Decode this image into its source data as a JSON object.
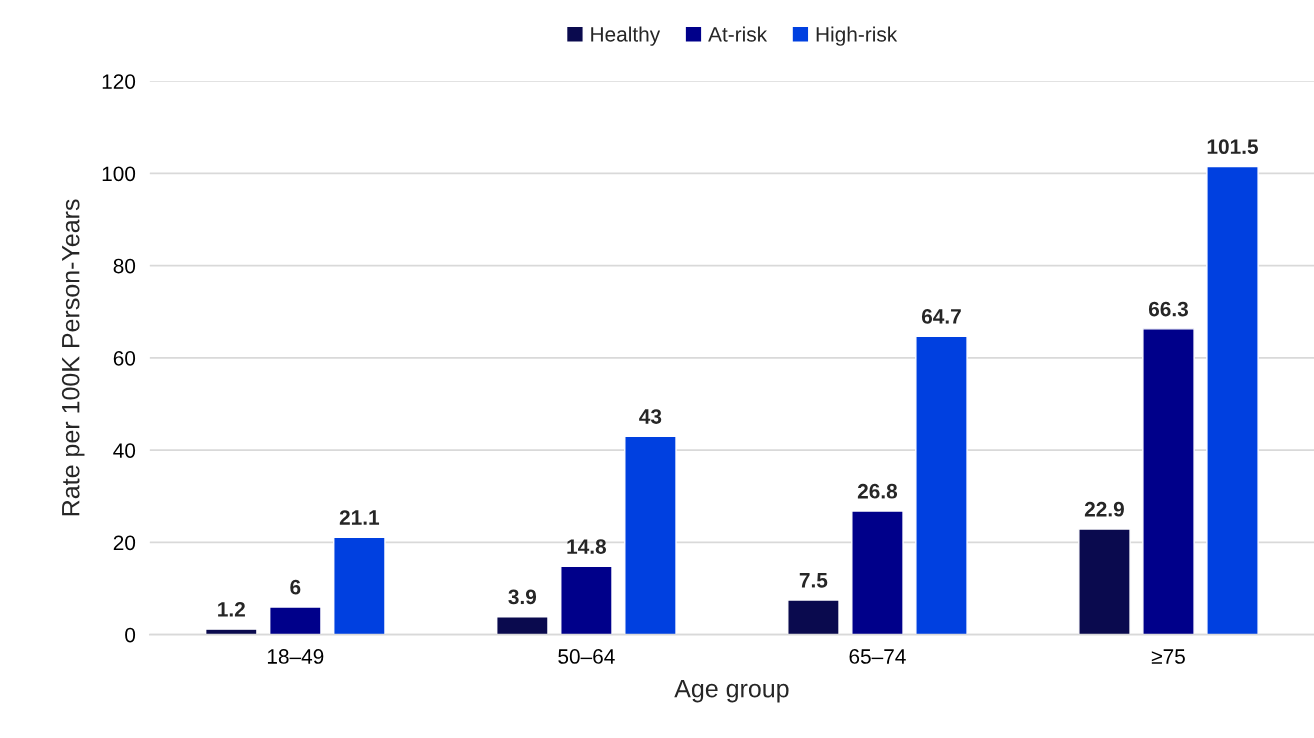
{
  "chart_data": {
    "type": "bar",
    "xlabel": "Age group",
    "ylabel": "Rate per 100K Person-Years",
    "categories": [
      "18–49",
      "50–64",
      "65–74",
      "≥75"
    ],
    "series": [
      {
        "name": "Healthy",
        "color": "#0a0a4e",
        "values": [
          1.2,
          3.9,
          7.5,
          22.9
        ]
      },
      {
        "name": "At-risk",
        "color": "#00008a",
        "values": [
          6,
          14.8,
          26.8,
          66.3
        ]
      },
      {
        "name": "High-risk",
        "color": "#0040e0",
        "values": [
          21.1,
          43,
          64.7,
          101.5
        ]
      }
    ],
    "ylim": [
      0,
      120
    ],
    "yticks": [
      0,
      20,
      40,
      60,
      80,
      100,
      120
    ],
    "grid": "y",
    "legend": "top",
    "data_labels": true
  }
}
